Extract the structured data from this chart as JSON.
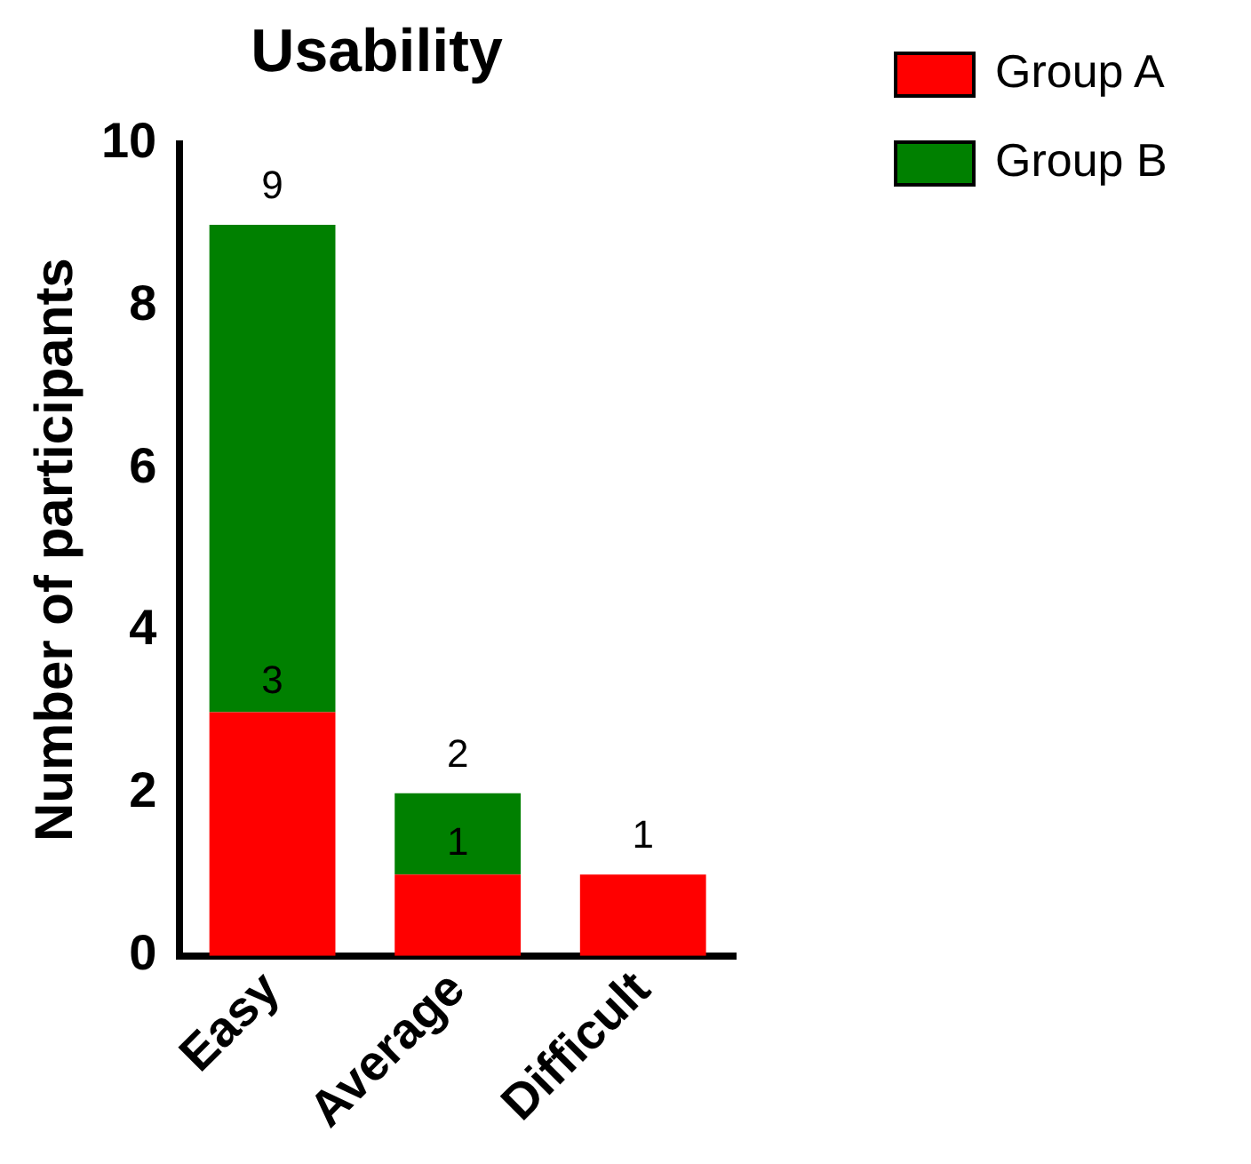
{
  "chart_data": {
    "type": "bar",
    "title": "Usability",
    "ylabel": "Number of participants",
    "categories": [
      "Easy",
      "Average",
      "Difficult"
    ],
    "series": [
      {
        "name": "Group A",
        "color": "#ff0000",
        "values": [
          3,
          1,
          1
        ],
        "value_labels": [
          "3",
          "1",
          null
        ]
      },
      {
        "name": "Group B",
        "color": "#008000",
        "values": [
          6,
          1,
          0
        ]
      }
    ],
    "stacked": true,
    "totals": [
      "9",
      "2",
      "1"
    ],
    "ylim": [
      0,
      10
    ],
    "yticks": [
      0,
      2,
      4,
      6,
      8,
      10
    ],
    "grid": false,
    "legend": "top right"
  }
}
